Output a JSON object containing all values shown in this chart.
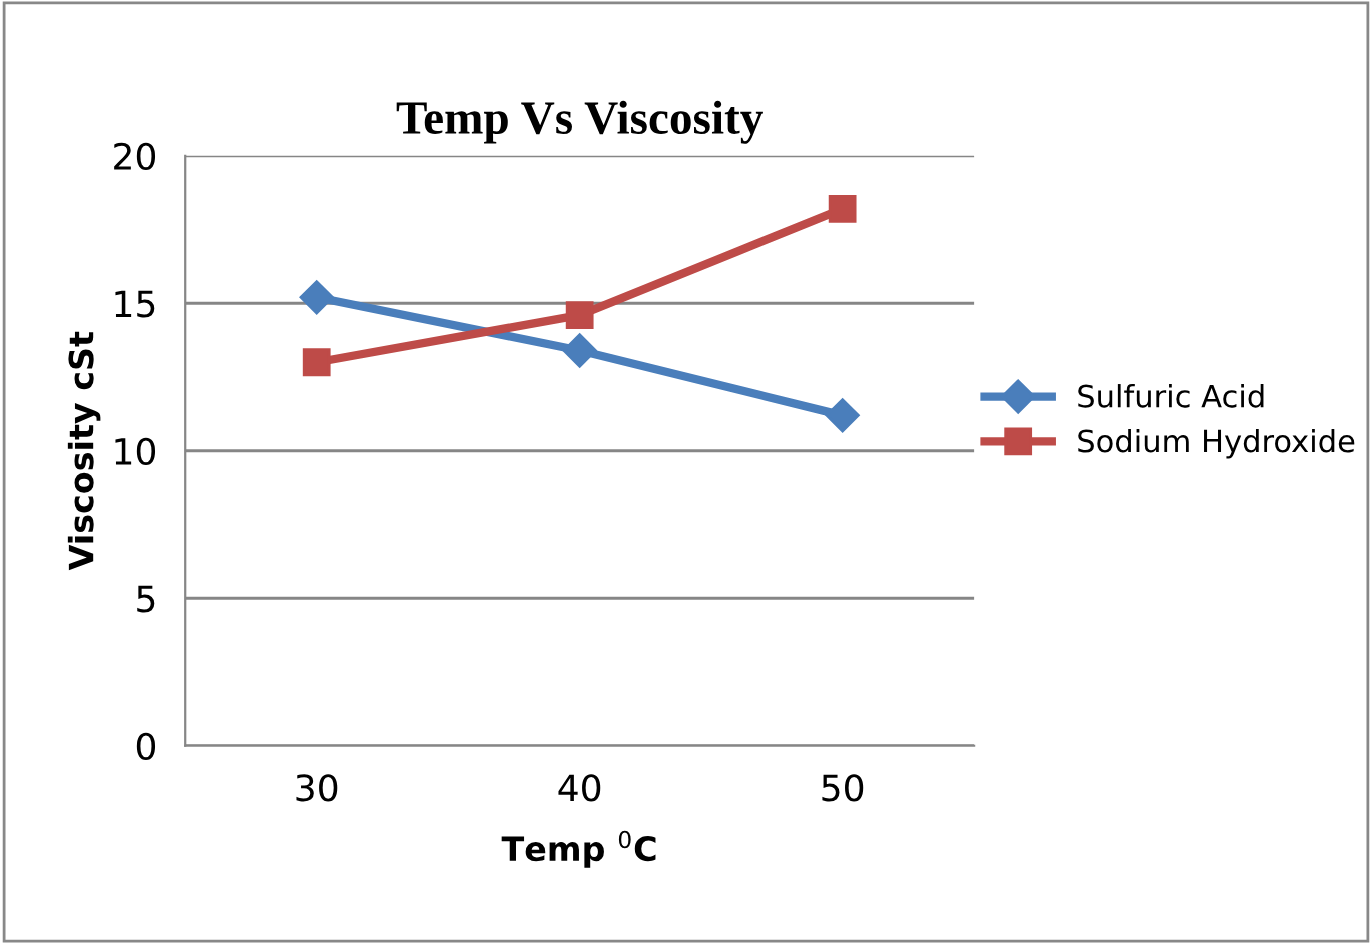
{
  "chart_data": {
    "type": "line",
    "title": "Temp Vs Viscosity",
    "xlabel": "Temp $^{0}$C",
    "ylabel": "Viscosity cSt",
    "categories": [
      "30",
      "40",
      "50"
    ],
    "series": [
      {
        "name": "Sulfuric Acid",
        "color": "#4a7ebb",
        "values": [
          15.2,
          13.4,
          11.2
        ],
        "marker": "diamond"
      },
      {
        "name": "Sodium Hydroxide",
        "color": "#be4b48",
        "values": [
          13.0,
          14.6,
          18.2
        ],
        "marker": "square"
      }
    ],
    "ylim": [
      0,
      20
    ],
    "yticks": [
      0,
      5,
      10,
      15,
      20
    ],
    "grid": "y",
    "legend": "right",
    "line_style": "solid"
  }
}
